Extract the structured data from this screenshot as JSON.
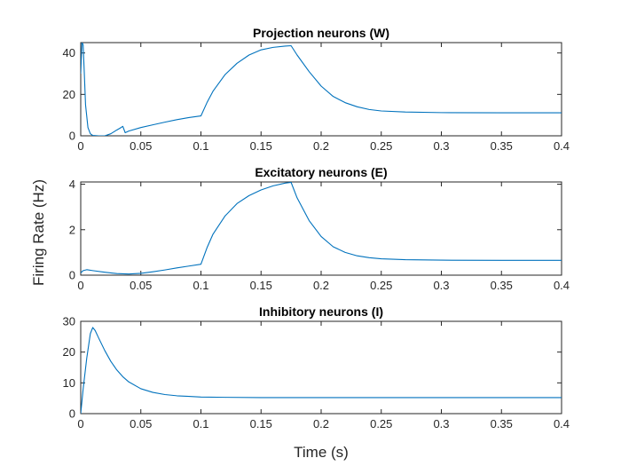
{
  "figure": {
    "ylabel": "Firing Rate (Hz)",
    "xlabel": "Time (s)",
    "line_color": "#0072BD"
  },
  "chart_data": [
    {
      "type": "line",
      "title": "Projection neurons (W)",
      "xlim": [
        0,
        0.4
      ],
      "ylim": [
        0,
        45
      ],
      "xticks": [
        0,
        0.05,
        0.1,
        0.15,
        0.2,
        0.25,
        0.3,
        0.35,
        0.4
      ],
      "xtick_labels": [
        "0",
        "0.05",
        "0.1",
        "0.15",
        "0.2",
        "0.25",
        "0.3",
        "0.35",
        "0.4"
      ],
      "yticks": [
        0,
        20,
        40
      ],
      "ytick_labels": [
        "0",
        "20",
        "40"
      ],
      "series": [
        {
          "x": [
            0,
            0.001,
            0.002,
            0.003,
            0.004,
            0.006,
            0.008,
            0.01,
            0.015,
            0.02,
            0.025,
            0.03,
            0.033,
            0.035,
            0.037,
            0.04,
            0.05,
            0.06,
            0.07,
            0.08,
            0.09,
            0.1,
            0.105,
            0.11,
            0.12,
            0.13,
            0.14,
            0.15,
            0.16,
            0.17,
            0.175,
            0.18,
            0.19,
            0.2,
            0.21,
            0.22,
            0.23,
            0.24,
            0.25,
            0.27,
            0.3,
            0.35,
            0.4
          ],
          "y": [
            30,
            45,
            44,
            30,
            15,
            4,
            1,
            0.2,
            0,
            0,
            1,
            2.8,
            3.8,
            4.6,
            1.5,
            2.3,
            4,
            5.3,
            6.6,
            7.8,
            8.8,
            9.6,
            16,
            21.5,
            29.5,
            35,
            39,
            41.5,
            42.7,
            43.3,
            43.5,
            39,
            31,
            24,
            19,
            16,
            14,
            12.7,
            12,
            11.5,
            11.2,
            11.1,
            11.1
          ]
        }
      ]
    },
    {
      "type": "line",
      "title": "Excitatory neurons (E)",
      "xlim": [
        0,
        0.4
      ],
      "ylim": [
        0,
        4.1
      ],
      "xticks": [
        0,
        0.05,
        0.1,
        0.15,
        0.2,
        0.25,
        0.3,
        0.35,
        0.4
      ],
      "xtick_labels": [
        "0",
        "0.05",
        "0.1",
        "0.15",
        "0.2",
        "0.25",
        "0.3",
        "0.35",
        "0.4"
      ],
      "yticks": [
        0,
        2,
        4
      ],
      "ytick_labels": [
        "0",
        "2",
        "4"
      ],
      "series": [
        {
          "x": [
            0,
            0.002,
            0.005,
            0.01,
            0.02,
            0.03,
            0.04,
            0.05,
            0.06,
            0.07,
            0.08,
            0.09,
            0.1,
            0.105,
            0.11,
            0.12,
            0.13,
            0.14,
            0.15,
            0.16,
            0.17,
            0.175,
            0.18,
            0.19,
            0.2,
            0.21,
            0.22,
            0.23,
            0.24,
            0.25,
            0.27,
            0.3,
            0.35,
            0.4
          ],
          "y": [
            0.1,
            0.2,
            0.24,
            0.2,
            0.13,
            0.07,
            0.05,
            0.08,
            0.15,
            0.23,
            0.32,
            0.4,
            0.48,
            1.2,
            1.8,
            2.6,
            3.15,
            3.5,
            3.75,
            3.93,
            4.05,
            4.08,
            3.4,
            2.4,
            1.7,
            1.25,
            1.0,
            0.85,
            0.77,
            0.72,
            0.68,
            0.66,
            0.65,
            0.65
          ]
        }
      ]
    },
    {
      "type": "line",
      "title": "Inhibitory neurons (I)",
      "xlim": [
        0,
        0.4
      ],
      "ylim": [
        0,
        30
      ],
      "xticks": [
        0,
        0.05,
        0.1,
        0.15,
        0.2,
        0.25,
        0.3,
        0.35,
        0.4
      ],
      "xtick_labels": [
        "0",
        "0.05",
        "0.1",
        "0.15",
        "0.2",
        "0.25",
        "0.3",
        "0.35",
        "0.4"
      ],
      "yticks": [
        0,
        10,
        20,
        30
      ],
      "ytick_labels": [
        "0",
        "10",
        "20",
        "30"
      ],
      "series": [
        {
          "x": [
            0,
            0.002,
            0.005,
            0.008,
            0.01,
            0.012,
            0.015,
            0.02,
            0.025,
            0.03,
            0.035,
            0.04,
            0.05,
            0.06,
            0.07,
            0.08,
            0.09,
            0.1,
            0.12,
            0.15,
            0.2,
            0.3,
            0.4
          ],
          "y": [
            0,
            8,
            18,
            26,
            28,
            27,
            24.5,
            20.5,
            17,
            14.2,
            12,
            10.3,
            8.1,
            6.9,
            6.2,
            5.8,
            5.6,
            5.4,
            5.3,
            5.2,
            5.2,
            5.2,
            5.2
          ]
        }
      ]
    }
  ]
}
